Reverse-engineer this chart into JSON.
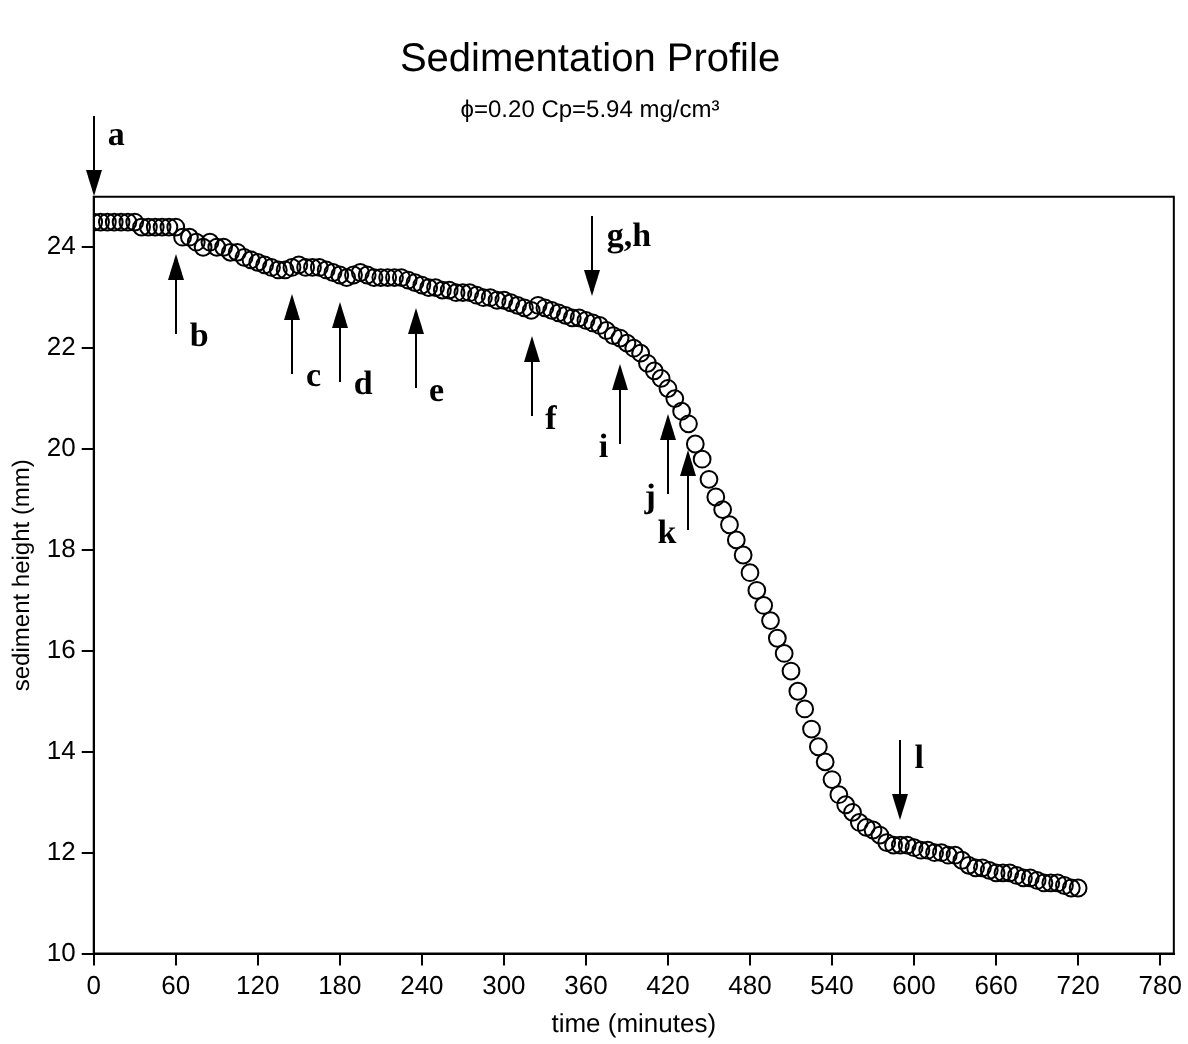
{
  "chart_data": {
    "type": "scatter",
    "title": "Sedimentation Profile",
    "subtitle": "ϕ=0.20 Cp=5.94 mg/cm³",
    "xlabel": "time (minutes)",
    "ylabel": "sediment height (mm)",
    "xlim": [
      0,
      790
    ],
    "xticks": [
      0,
      60,
      120,
      180,
      240,
      300,
      360,
      420,
      480,
      540,
      600,
      660,
      720,
      780
    ],
    "ylim": [
      10,
      25
    ],
    "yticks": [
      10,
      12,
      14,
      16,
      18,
      20,
      22,
      24
    ],
    "grid": false,
    "legend": false,
    "marker": "circle",
    "series": [
      {
        "color": "#000000",
        "x": [
          0,
          5,
          10,
          15,
          20,
          25,
          30,
          35,
          40,
          45,
          50,
          55,
          60,
          65,
          70,
          75,
          80,
          85,
          90,
          95,
          100,
          105,
          110,
          115,
          120,
          125,
          130,
          135,
          140,
          145,
          150,
          155,
          160,
          165,
          170,
          175,
          180,
          185,
          190,
          195,
          200,
          205,
          210,
          215,
          220,
          225,
          230,
          235,
          240,
          245,
          250,
          255,
          260,
          265,
          270,
          275,
          280,
          285,
          290,
          295,
          300,
          305,
          310,
          315,
          320,
          325,
          330,
          335,
          340,
          345,
          350,
          355,
          360,
          365,
          370,
          375,
          380,
          385,
          390,
          395,
          400,
          405,
          410,
          415,
          420,
          425,
          430,
          435,
          440,
          445,
          450,
          455,
          460,
          465,
          470,
          475,
          480,
          485,
          490,
          495,
          500,
          505,
          510,
          515,
          520,
          525,
          530,
          535,
          540,
          545,
          550,
          555,
          560,
          565,
          570,
          575,
          580,
          585,
          590,
          595,
          600,
          605,
          610,
          615,
          620,
          625,
          630,
          635,
          640,
          645,
          650,
          655,
          660,
          665,
          670,
          675,
          680,
          685,
          690,
          695,
          700,
          705,
          710,
          715,
          720
        ],
        "values": [
          24.5,
          24.5,
          24.5,
          24.5,
          24.5,
          24.5,
          24.5,
          24.4,
          24.4,
          24.4,
          24.4,
          24.4,
          24.4,
          24.2,
          24.2,
          24.1,
          24.0,
          24.1,
          24.0,
          24.0,
          23.9,
          23.9,
          23.8,
          23.75,
          23.7,
          23.65,
          23.6,
          23.55,
          23.55,
          23.6,
          23.65,
          23.6,
          23.6,
          23.6,
          23.55,
          23.5,
          23.45,
          23.4,
          23.45,
          23.5,
          23.45,
          23.4,
          23.4,
          23.4,
          23.4,
          23.4,
          23.35,
          23.3,
          23.25,
          23.2,
          23.2,
          23.15,
          23.15,
          23.1,
          23.1,
          23.1,
          23.05,
          23.0,
          23.0,
          22.95,
          22.95,
          22.9,
          22.85,
          22.8,
          22.75,
          22.85,
          22.8,
          22.75,
          22.7,
          22.65,
          22.6,
          22.6,
          22.55,
          22.5,
          22.45,
          22.35,
          22.25,
          22.2,
          22.1,
          22.0,
          21.9,
          21.7,
          21.55,
          21.4,
          21.2,
          21.0,
          20.75,
          20.5,
          20.1,
          19.8,
          19.4,
          19.05,
          18.8,
          18.5,
          18.2,
          17.9,
          17.55,
          17.2,
          16.9,
          16.6,
          16.25,
          15.95,
          15.6,
          15.2,
          14.85,
          14.45,
          14.1,
          13.8,
          13.45,
          13.15,
          12.95,
          12.8,
          12.6,
          12.5,
          12.45,
          12.35,
          12.2,
          12.15,
          12.15,
          12.15,
          12.1,
          12.05,
          12.05,
          12.0,
          12.0,
          11.95,
          11.95,
          11.85,
          11.75,
          11.7,
          11.7,
          11.65,
          11.6,
          11.6,
          11.6,
          11.55,
          11.5,
          11.5,
          11.45,
          11.4,
          11.4,
          11.4,
          11.35,
          11.3,
          11.3
        ]
      }
    ],
    "annotations": [
      {
        "text": "a",
        "x": 0,
        "y": 24.5
      },
      {
        "text": "b",
        "x": 60,
        "y": 24.4
      },
      {
        "text": "c",
        "x": 145,
        "y": 23.6
      },
      {
        "text": "d",
        "x": 180,
        "y": 23.45
      },
      {
        "text": "e",
        "x": 235,
        "y": 23.3
      },
      {
        "text": "f",
        "x": 320,
        "y": 22.75
      },
      {
        "text": "g,h",
        "x": 365,
        "y": 22.5
      },
      {
        "text": "i",
        "x": 385,
        "y": 22.2
      },
      {
        "text": "j",
        "x": 420,
        "y": 21.2
      },
      {
        "text": "k",
        "x": 435,
        "y": 20.5
      },
      {
        "text": "l",
        "x": 590,
        "y": 12.15
      }
    ]
  }
}
